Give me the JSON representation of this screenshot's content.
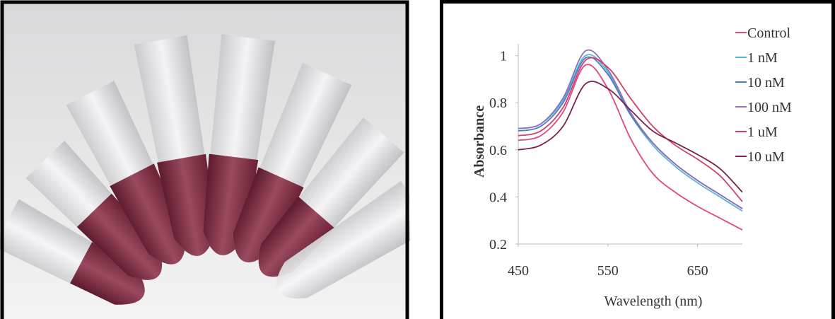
{
  "chart_data": {
    "type": "line",
    "x_label": "Wavelength (nm)",
    "y_label": "Absorbance",
    "x": [
      450,
      475,
      500,
      525,
      550,
      575,
      600,
      625,
      650,
      675,
      700
    ],
    "xlim": [
      450,
      700
    ],
    "xticks": [
      450,
      550,
      650
    ],
    "ylim": [
      0.2,
      1.05
    ],
    "yticks": [
      0.2,
      0.4,
      0.6,
      0.8,
      1
    ],
    "series": [
      {
        "name": "Control",
        "color": "#e2477f",
        "values": [
          0.64,
          0.66,
          0.76,
          0.96,
          0.86,
          0.65,
          0.5,
          0.42,
          0.36,
          0.31,
          0.26
        ]
      },
      {
        "name": "1 nM",
        "color": "#5cb3dc",
        "values": [
          0.69,
          0.71,
          0.81,
          1.0,
          0.93,
          0.75,
          0.62,
          0.53,
          0.46,
          0.4,
          0.34
        ]
      },
      {
        "name": "10 nM",
        "color": "#4a7fc0",
        "values": [
          0.68,
          0.7,
          0.8,
          0.99,
          0.92,
          0.75,
          0.63,
          0.54,
          0.47,
          0.41,
          0.35
        ]
      },
      {
        "name": "100 nM",
        "color": "#8c72b2",
        "values": [
          0.69,
          0.71,
          0.82,
          1.02,
          0.94,
          0.76,
          0.63,
          0.54,
          0.47,
          0.41,
          0.35
        ]
      },
      {
        "name": "1 uM",
        "color": "#d0406a",
        "values": [
          0.66,
          0.68,
          0.78,
          0.98,
          0.95,
          0.82,
          0.7,
          0.62,
          0.56,
          0.49,
          0.38
        ]
      },
      {
        "name": "10 uM",
        "color": "#7a2050",
        "values": [
          0.6,
          0.62,
          0.7,
          0.88,
          0.86,
          0.77,
          0.68,
          0.63,
          0.58,
          0.52,
          0.42
        ]
      }
    ]
  }
}
